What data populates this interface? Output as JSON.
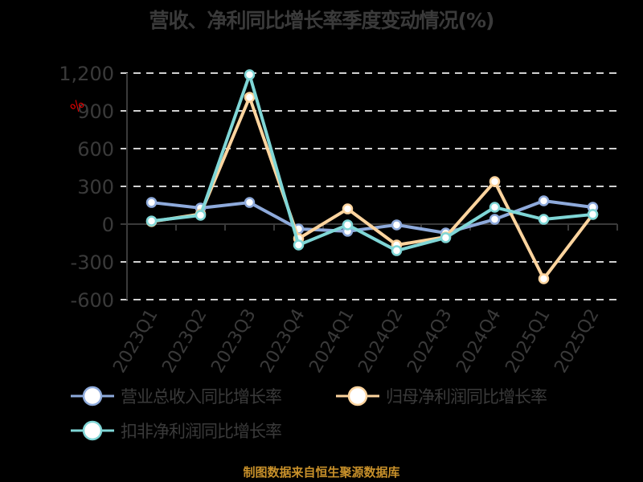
{
  "title": "营收、净利同比增长率季度变动情况(%)",
  "source": "制图数据来自恒生聚源数据库",
  "y_unit": "%",
  "chart_data": {
    "type": "line",
    "title": "营收、净利同比增长率季度变动情况(%)",
    "xlabel": "",
    "ylabel": "%",
    "ylim": [
      -600,
      1200
    ],
    "yticks": [
      -600,
      -300,
      0,
      300,
      600,
      900,
      1200
    ],
    "ytick_labels": [
      "-600",
      "-300",
      "0",
      "300",
      "600",
      "900",
      "1,200"
    ],
    "grid": "horizontal dashed",
    "legend_position": "bottom",
    "categories": [
      "2023Q1",
      "2023Q2",
      "2023Q3",
      "2023Q4",
      "2024Q1",
      "2024Q2",
      "2024Q3",
      "2024Q4",
      "2025Q1",
      "2025Q2"
    ],
    "series": [
      {
        "name": "营业总收入同比增长率",
        "color": "#8eaadb",
        "values": [
          172,
          128,
          172,
          -38,
          -57,
          -6,
          -70,
          38,
          185,
          134
        ]
      },
      {
        "name": "归母净利润同比增长率",
        "color": "#fdd49e",
        "values": [
          20,
          80,
          1008,
          -115,
          121,
          -166,
          -102,
          338,
          -434,
          77
        ]
      },
      {
        "name": "扣非净利润同比增长率",
        "color": "#7fd6d6",
        "values": [
          25,
          70,
          1187,
          -166,
          -6,
          -211,
          -108,
          134,
          38,
          77
        ]
      }
    ]
  }
}
